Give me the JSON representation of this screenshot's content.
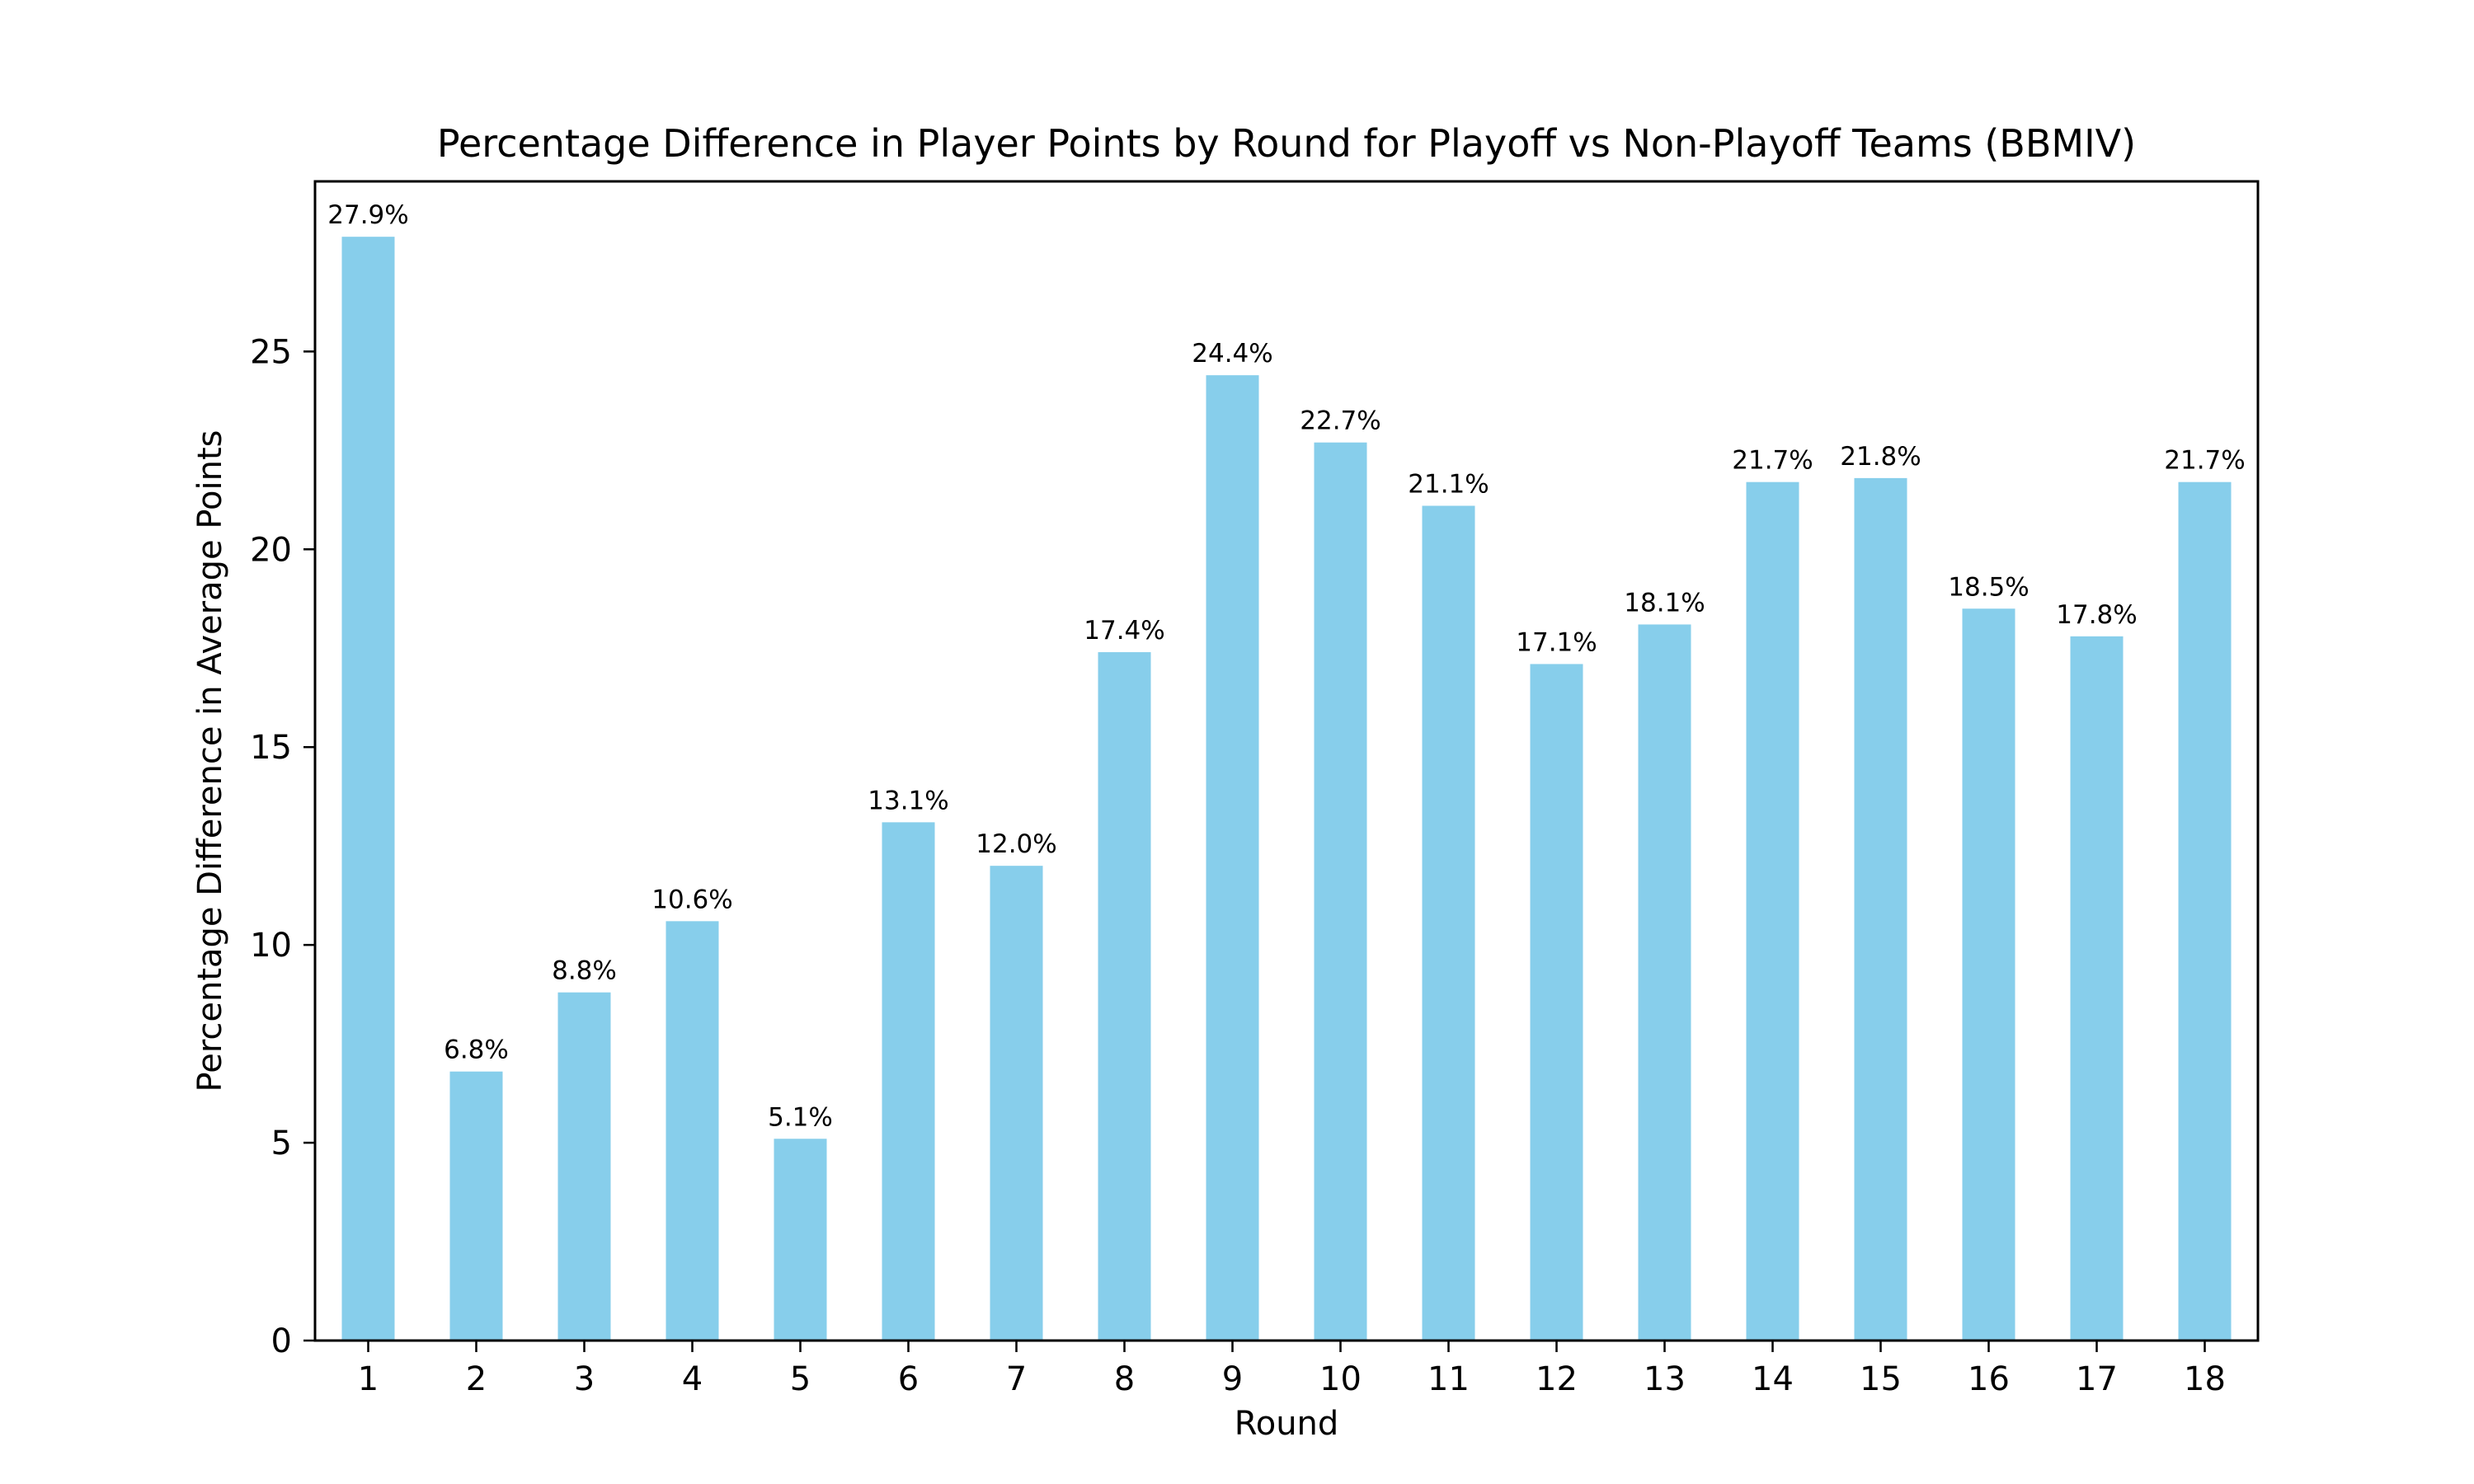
{
  "chart_data": {
    "type": "bar",
    "title": "Percentage Difference in Player Points by Round for Playoff vs Non-Playoff Teams (BBMIV)",
    "xlabel": "Round",
    "ylabel": "Percentage Difference in Average Points",
    "categories": [
      "1",
      "2",
      "3",
      "4",
      "5",
      "6",
      "7",
      "8",
      "9",
      "10",
      "11",
      "12",
      "13",
      "14",
      "15",
      "16",
      "17",
      "18"
    ],
    "values": [
      27.9,
      6.8,
      8.8,
      10.6,
      5.1,
      13.1,
      12.0,
      17.4,
      24.4,
      22.7,
      21.1,
      17.1,
      18.1,
      21.7,
      21.8,
      18.5,
      17.8,
      21.7
    ],
    "value_labels": [
      "27.9%",
      "6.8%",
      "8.8%",
      "10.6%",
      "5.1%",
      "13.1%",
      "12.0%",
      "17.4%",
      "24.4%",
      "22.7%",
      "21.1%",
      "17.1%",
      "18.1%",
      "21.7%",
      "21.8%",
      "18.5%",
      "17.8%",
      "21.7%"
    ],
    "ylim": [
      0,
      29.3
    ],
    "yticks": [
      0,
      5,
      10,
      15,
      20,
      25
    ],
    "ytick_labels": [
      "0",
      "5",
      "10",
      "15",
      "20",
      "25"
    ],
    "grid": false,
    "legend": "none",
    "colors": {
      "bar": "#87CEEB",
      "axis": "#000000",
      "text": "#000000",
      "background": "#ffffff"
    }
  }
}
